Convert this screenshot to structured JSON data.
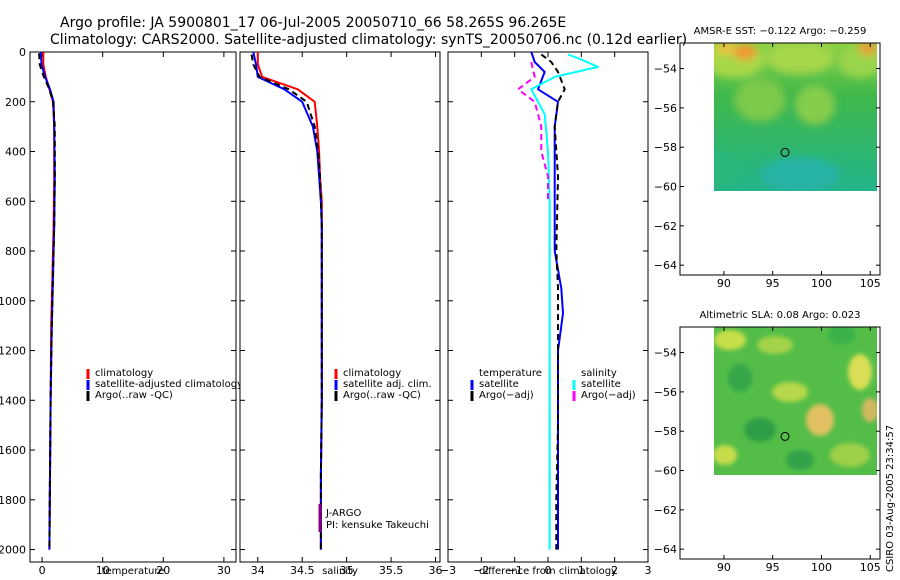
{
  "title": {
    "line1": "Argo profile: JA 5900801_17 06-Jul-2005 20050710_66 58.265S 96.265E",
    "line2": "Climatology: CARS2000. Satellite-adjusted climatology: synTS_20050706.nc (0.12d earlier)"
  },
  "side_label": "CSIRO 03-Aug-2005 23:34:57",
  "colors": {
    "red": "#ff0000",
    "blue": "#0000ff",
    "black": "#000000",
    "cyan": "#00ffff",
    "magenta": "#ff00ff"
  },
  "chart_data": [
    {
      "type": "line",
      "id": "temperature",
      "xlabel": "temperature",
      "ylabel": "",
      "xlim": [
        -2,
        32
      ],
      "ylim": [
        2050,
        0
      ],
      "xticks": [
        0,
        10,
        20,
        30
      ],
      "xticklabels": [
        "0",
        "10",
        "20",
        "30"
      ],
      "yticks": [
        0,
        200,
        400,
        600,
        800,
        1000,
        1200,
        1400,
        1600,
        1800,
        2000
      ],
      "yticklabels": [
        "0",
        "200",
        "400",
        "600",
        "800",
        "1000",
        "1200",
        "1400",
        "1600",
        "1800",
        "2000"
      ],
      "legend": [
        "climatology",
        "satellite-adjusted climatology",
        "Argo(..raw -QC)"
      ],
      "legend_colors": [
        "#ff0000",
        "#0000ff",
        "#000000"
      ],
      "series": [
        {
          "name": "climatology",
          "color": "#ff0000",
          "dash": false,
          "x": [
            0.2,
            0.2,
            0.6,
            1.2,
            1.8,
            2.0,
            2.0,
            1.9,
            1.7,
            1.5,
            1.4,
            1.3,
            1.2
          ],
          "y": [
            0,
            50,
            100,
            150,
            200,
            300,
            500,
            700,
            900,
            1100,
            1400,
            1700,
            2000
          ]
        },
        {
          "name": "satellite-adjusted climatology",
          "color": "#0000ff",
          "dash": false,
          "x": [
            -0.2,
            -0.1,
            0.5,
            1.3,
            1.9,
            2.0,
            2.1,
            2.0,
            1.8,
            1.6,
            1.4,
            1.3,
            1.2
          ],
          "y": [
            0,
            50,
            100,
            150,
            200,
            300,
            500,
            700,
            900,
            1100,
            1400,
            1700,
            2000
          ]
        },
        {
          "name": "Argo(..raw -QC)",
          "color": "#000000",
          "dash": true,
          "x": [
            -0.5,
            -0.4,
            0.3,
            1.2,
            1.8,
            2.1,
            2.1,
            2.0,
            1.8,
            1.6,
            1.4,
            1.3,
            1.2
          ],
          "y": [
            5,
            50,
            100,
            150,
            200,
            300,
            500,
            700,
            900,
            1100,
            1400,
            1700,
            2000
          ]
        }
      ]
    },
    {
      "type": "line",
      "id": "salinity",
      "xlabel": "salinity",
      "xlim": [
        33.8,
        36.05
      ],
      "ylim": [
        2050,
        0
      ],
      "xticks": [
        34,
        34.5,
        35,
        35.5,
        36
      ],
      "xticklabels": [
        "34",
        "34.5",
        "35",
        "35.5",
        "36"
      ],
      "yticks": [
        0,
        200,
        400,
        600,
        800,
        1000,
        1200,
        1400,
        1600,
        1800,
        2000
      ],
      "legend": [
        "climatology",
        "satellite adj. clim.",
        "Argo(..raw -QC)"
      ],
      "legend_colors": [
        "#ff0000",
        "#0000ff",
        "#000000"
      ],
      "annotation": [
        "J-ARGO",
        "PI: kensuke Takeuchi"
      ],
      "series": [
        {
          "name": "climatology",
          "color": "#ff0000",
          "dash": false,
          "x": [
            34.0,
            34.0,
            34.05,
            34.45,
            34.64,
            34.67,
            34.69,
            34.7,
            34.72,
            34.72,
            34.72,
            34.72,
            34.72,
            34.71,
            34.71
          ],
          "y": [
            0,
            50,
            100,
            150,
            200,
            300,
            400,
            500,
            600,
            700,
            800,
            1000,
            1400,
            1700,
            2000
          ]
        },
        {
          "name": "satellite adj. clim.",
          "color": "#0000ff",
          "dash": false,
          "x": [
            33.95,
            33.98,
            34.0,
            34.3,
            34.5,
            34.62,
            34.67,
            34.69,
            34.71,
            34.72,
            34.72,
            34.72,
            34.72,
            34.71,
            34.71
          ],
          "y": [
            0,
            50,
            100,
            150,
            200,
            300,
            400,
            500,
            600,
            700,
            800,
            1000,
            1400,
            1700,
            2000
          ]
        },
        {
          "name": "Argo(..raw -QC)",
          "color": "#000000",
          "dash": true,
          "x": [
            33.93,
            33.95,
            34.02,
            34.35,
            34.55,
            34.64,
            34.68,
            34.7,
            34.71,
            34.72,
            34.72,
            34.72,
            34.72,
            34.71,
            34.71
          ],
          "y": [
            10,
            50,
            100,
            150,
            200,
            300,
            400,
            500,
            600,
            700,
            800,
            1000,
            1400,
            1700,
            2000
          ]
        }
      ]
    },
    {
      "type": "line",
      "id": "difference",
      "xlabel": "difference from climatology",
      "xlim": [
        -3,
        3
      ],
      "ylim": [
        2050,
        0
      ],
      "xticks": [
        -3,
        -2,
        -1,
        0,
        1,
        2,
        3
      ],
      "xticklabels": [
        "−3",
        "−2",
        "−1",
        "0",
        "1",
        "2",
        "3"
      ],
      "yticks": [
        0,
        200,
        400,
        600,
        800,
        1000,
        1200,
        1400,
        1600,
        1800,
        2000
      ],
      "legend": [
        "temperature",
        "satellite",
        "Argo(−adj)",
        "salinity",
        "satellite",
        "Argo(−adj)"
      ],
      "legend_colors": [
        "#ffffff",
        "#0000ff",
        "#000000",
        "#ffffff",
        "#00ffff",
        "#ff00ff"
      ],
      "series": [
        {
          "name": "temperature satellite",
          "color": "#0000ff",
          "dash": false,
          "x": [
            -0.5,
            -0.4,
            -0.1,
            -0.3,
            0.3,
            0.2,
            0.2,
            0.2,
            0.4,
            0.45,
            0.3,
            0.3,
            0.3,
            0.3
          ],
          "y": [
            0,
            40,
            80,
            150,
            200,
            300,
            500,
            800,
            950,
            1050,
            1200,
            1500,
            1800,
            2000
          ]
        },
        {
          "name": "temperature Argo(-adj)",
          "color": "#000000",
          "dash": true,
          "x": [
            -0.2,
            0.1,
            0.3,
            0.5,
            0.3,
            0.2,
            0.3,
            0.25,
            0.3,
            0.3,
            0.3,
            0.3,
            0.25,
            0.25
          ],
          "y": [
            10,
            40,
            80,
            150,
            200,
            300,
            500,
            800,
            950,
            1050,
            1200,
            1500,
            1800,
            2000
          ]
        },
        {
          "name": "salinity satellite",
          "color": "#00ffff",
          "dash": false,
          "x": [
            0.6,
            1.0,
            1.5,
            0.2,
            -0.5,
            -0.1,
            0.0,
            0.05,
            0.05,
            0.05,
            0.05,
            0.05,
            0.05,
            0.05
          ],
          "y": [
            10,
            30,
            60,
            100,
            150,
            250,
            400,
            600,
            800,
            1000,
            1300,
            1600,
            1800,
            2000
          ]
        },
        {
          "name": "salinity Argo(-adj)",
          "color": "#ff00ff",
          "dash": true,
          "x": [
            -0.5,
            -0.4,
            -0.9,
            -0.4,
            -0.2,
            -0.2,
            0.0,
            0.0
          ],
          "y": [
            40,
            100,
            150,
            200,
            300,
            400,
            500,
            600
          ]
        }
      ]
    },
    {
      "type": "heatmap",
      "id": "sst_map",
      "title": "AMSR-E SST: −0.122 Argo: −0.259",
      "xlim": [
        85.5,
        106
      ],
      "ylim": [
        -64.5,
        -52.7
      ],
      "xticks": [
        90,
        95,
        100,
        105
      ],
      "xticklabels": [
        "90",
        "95",
        "100",
        "105"
      ],
      "yticks": [
        -54,
        -56,
        -58,
        -60,
        -62,
        -64
      ],
      "yticklabels": [
        "−54",
        "−56",
        "−58",
        "−60",
        "−62",
        "−64"
      ],
      "data_extent": {
        "lon": [
          90,
          106
        ],
        "lat": [
          -60.1,
          -53
        ]
      },
      "marker": {
        "lon": 96.265,
        "lat": -58.265
      }
    },
    {
      "type": "heatmap",
      "id": "sla_map",
      "title": "Altimetric SLA: 0.08 Argo: 0.023",
      "xlim": [
        85.5,
        106
      ],
      "ylim": [
        -64.5,
        -52.7
      ],
      "xticks": [
        90,
        95,
        100,
        105
      ],
      "xticklabels": [
        "90",
        "95",
        "100",
        "105"
      ],
      "yticks": [
        -54,
        -56,
        -58,
        -60,
        -62,
        -64
      ],
      "yticklabels": [
        "−54",
        "−56",
        "−58",
        "−60",
        "−62",
        "−64"
      ],
      "data_extent": {
        "lon": [
          90,
          106
        ],
        "lat": [
          -60.1,
          -53
        ]
      },
      "marker": {
        "lon": 96.265,
        "lat": -58.265
      }
    }
  ]
}
